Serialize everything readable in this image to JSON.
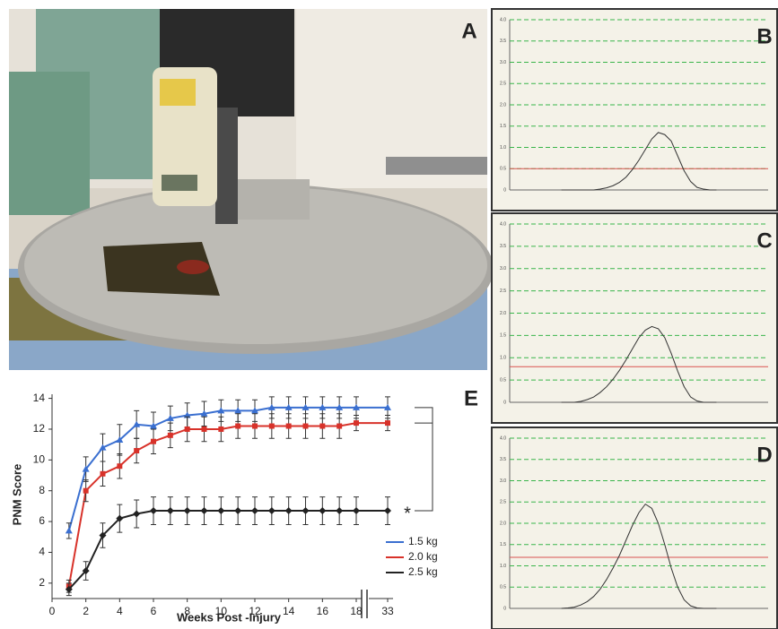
{
  "chart_data": [
    {
      "type": "line",
      "panel": "E",
      "xlabel": "Weeks Post -Injury",
      "ylabel": "PNM Score",
      "annotation": "*",
      "x": [
        1,
        2,
        3,
        4,
        5,
        6,
        7,
        8,
        9,
        10,
        11,
        12,
        13,
        14,
        15,
        16,
        17,
        18,
        33
      ],
      "xlim": [
        0,
        33
      ],
      "xticks": [
        0,
        2,
        4,
        6,
        8,
        10,
        12,
        14,
        16,
        18,
        33
      ],
      "axis_break": true,
      "ylim": [
        1,
        14.5
      ],
      "yticks": [
        2,
        4,
        6,
        8,
        10,
        12,
        14
      ],
      "legend": "lower right",
      "series": [
        {
          "name": "1.5 kg",
          "color": "#3a6fd0",
          "marker": "triangle",
          "values": [
            5.4,
            9.4,
            10.8,
            11.3,
            12.3,
            12.2,
            12.7,
            12.9,
            13.0,
            13.2,
            13.2,
            13.2,
            13.4,
            13.4,
            13.4,
            13.4,
            13.4,
            13.4,
            13.4
          ],
          "errors": [
            0.5,
            0.8,
            0.9,
            1.0,
            0.9,
            0.9,
            0.8,
            0.8,
            0.8,
            0.7,
            0.7,
            0.7,
            0.7,
            0.7,
            0.7,
            0.7,
            0.7,
            0.7,
            0.7
          ]
        },
        {
          "name": "2.0 kg",
          "color": "#d8322a",
          "marker": "square",
          "values": [
            1.8,
            8.0,
            9.1,
            9.6,
            10.6,
            11.2,
            11.6,
            12.0,
            12.0,
            12.0,
            12.2,
            12.2,
            12.2,
            12.2,
            12.2,
            12.2,
            12.2,
            12.4,
            12.4
          ],
          "errors": [
            0.4,
            0.7,
            0.8,
            0.8,
            0.8,
            0.8,
            0.8,
            0.8,
            0.8,
            0.8,
            0.8,
            0.8,
            0.8,
            0.8,
            0.8,
            0.8,
            0.8,
            0.5,
            0.5
          ]
        },
        {
          "name": "2.5 kg",
          "color": "#222222",
          "marker": "diamond",
          "values": [
            1.6,
            2.8,
            5.1,
            6.2,
            6.5,
            6.7,
            6.7,
            6.7,
            6.7,
            6.7,
            6.7,
            6.7,
            6.7,
            6.7,
            6.7,
            6.7,
            6.7,
            6.7,
            6.7
          ],
          "errors": [
            0.4,
            0.6,
            0.8,
            0.9,
            0.9,
            0.9,
            0.9,
            0.9,
            0.9,
            0.9,
            0.9,
            0.9,
            0.9,
            0.9,
            0.9,
            0.9,
            0.9,
            0.9,
            0.9
          ]
        }
      ]
    },
    {
      "type": "trace",
      "panel": "B",
      "color": "#333333",
      "threshold": 0.5,
      "threshold_color": "#d9534f",
      "grid_color": "#39b54a",
      "ylim": [
        0,
        4
      ],
      "yticks": [
        0,
        0.5,
        {
          "value": 1,
          "label": "1.0"
        },
        1.5,
        {
          "value": 2,
          "label": "2.0"
        },
        2.5,
        {
          "value": 3,
          "label": "3.0"
        },
        3.5,
        {
          "value": 4,
          "label": "4.0"
        }
      ],
      "values": [
        0,
        0,
        0,
        0,
        0,
        0,
        0.02,
        0.05,
        0.1,
        0.18,
        0.3,
        0.48,
        0.7,
        0.95,
        1.2,
        1.35,
        1.3,
        1.15,
        0.8,
        0.45,
        0.2,
        0.06,
        0.02,
        0,
        0
      ]
    },
    {
      "type": "trace",
      "panel": "C",
      "color": "#333333",
      "threshold": 0.8,
      "threshold_color": "#d9534f",
      "grid_color": "#39b54a",
      "ylim": [
        0,
        4
      ],
      "yticks": [
        0,
        0.5,
        {
          "value": 1,
          "label": "1.0"
        },
        1.5,
        {
          "value": 2,
          "label": "2.0"
        },
        2.5,
        {
          "value": 3,
          "label": "3.0"
        },
        3.5,
        {
          "value": 4,
          "label": "4.0"
        }
      ],
      "values": [
        0,
        0,
        0,
        0.02,
        0.06,
        0.12,
        0.22,
        0.35,
        0.52,
        0.72,
        0.95,
        1.2,
        1.45,
        1.62,
        1.7,
        1.65,
        1.45,
        1.1,
        0.7,
        0.35,
        0.12,
        0.03,
        0,
        0,
        0
      ]
    },
    {
      "type": "trace",
      "panel": "D",
      "color": "#333333",
      "threshold": 1.2,
      "threshold_color": "#d9534f",
      "grid_color": "#39b54a",
      "ylim": [
        0,
        4
      ],
      "yticks": [
        0,
        0.5,
        {
          "value": 1,
          "label": "1.0"
        },
        1.5,
        {
          "value": 2,
          "label": "2.0"
        },
        2.5,
        {
          "value": 3,
          "label": "3.0"
        },
        3.5,
        {
          "value": 4,
          "label": "4.0"
        }
      ],
      "values": [
        0,
        0.01,
        0.03,
        0.08,
        0.16,
        0.28,
        0.45,
        0.68,
        0.95,
        1.25,
        1.6,
        1.95,
        2.25,
        2.45,
        2.35,
        2.0,
        1.5,
        0.95,
        0.5,
        0.2,
        0.06,
        0.01,
        0,
        0,
        0
      ]
    }
  ]
}
